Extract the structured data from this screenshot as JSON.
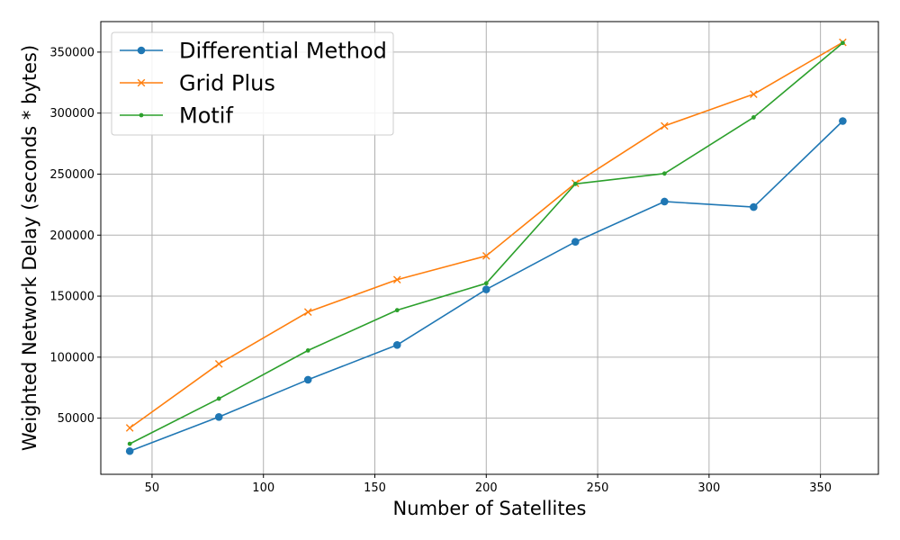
{
  "chart_data": {
    "type": "line",
    "title": "",
    "xlabel": "Number of Satellites",
    "ylabel": "Weighted Network Delay (seconds * bytes)",
    "xlim": [
      27,
      376
    ],
    "ylim": [
      4000,
      375000
    ],
    "x_ticks": [
      50,
      100,
      150,
      200,
      250,
      300,
      350
    ],
    "y_ticks": [
      50000,
      100000,
      150000,
      200000,
      250000,
      300000,
      350000
    ],
    "grid": true,
    "legend_position": "top-left",
    "x": [
      40,
      80,
      120,
      160,
      200,
      240,
      280,
      320,
      360
    ],
    "series": [
      {
        "name": "Differential Method",
        "color": "#1f77b4",
        "marker": "circle",
        "values": [
          23000,
          51000,
          81500,
          110000,
          155500,
          194500,
          227500,
          223000,
          293500
        ]
      },
      {
        "name": "Grid Plus",
        "color": "#ff7f0e",
        "marker": "x",
        "values": [
          42000,
          94500,
          137000,
          163500,
          183000,
          242500,
          289500,
          315500,
          358000
        ]
      },
      {
        "name": "Motif",
        "color": "#2ca02c",
        "marker": "dot",
        "values": [
          29000,
          66000,
          105500,
          138500,
          160500,
          242000,
          250500,
          296500,
          357500
        ]
      }
    ]
  }
}
